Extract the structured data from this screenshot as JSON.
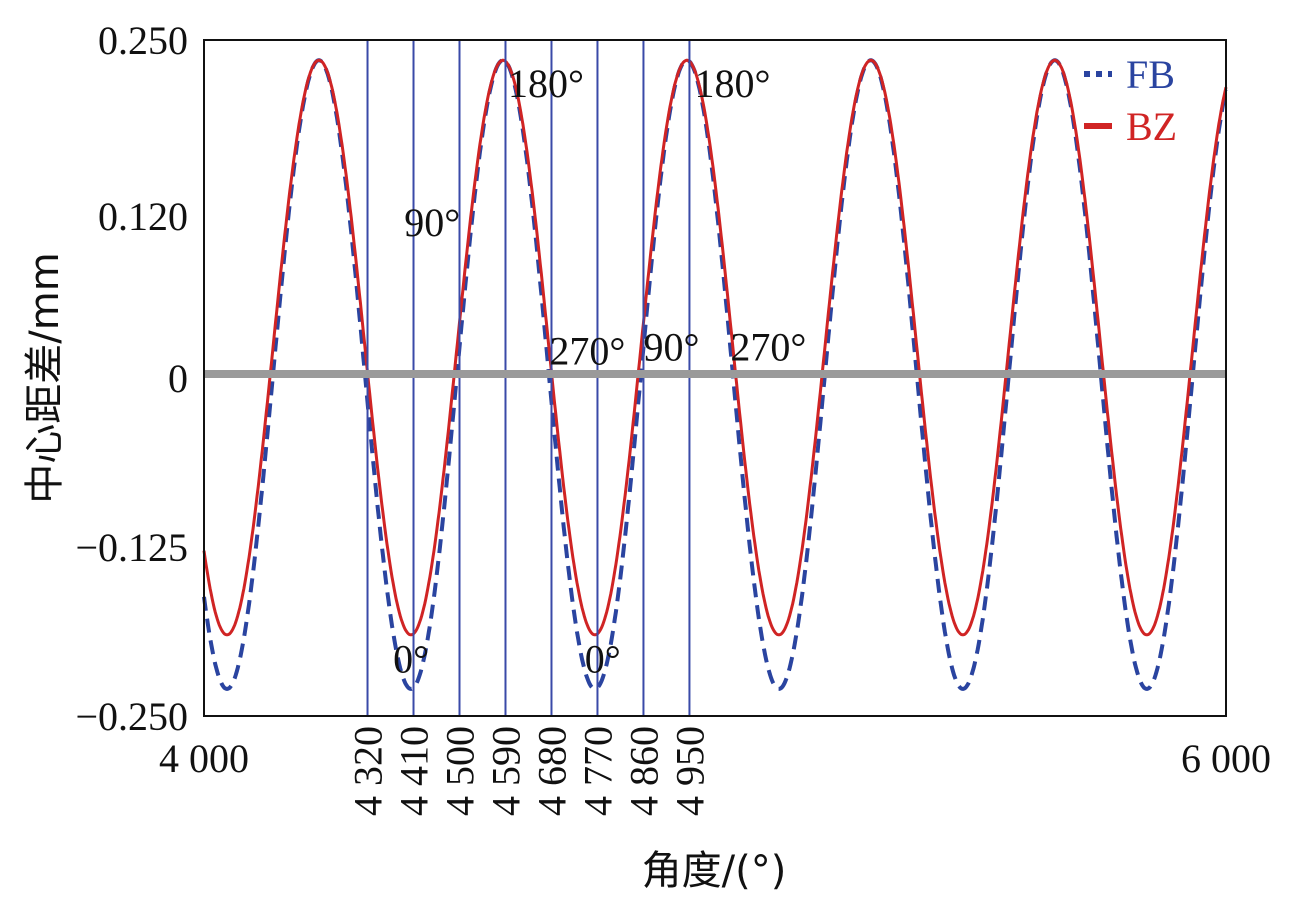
{
  "chart_data": {
    "type": "line",
    "xlabel": "角度/(°)",
    "ylabel": "中心距差/mm",
    "xlim": [
      4000,
      6000
    ],
    "ylim": [
      -0.25,
      0.25
    ],
    "x_tick_labels": [
      "4 000",
      "6 000"
    ],
    "x_tick_values": [
      4000,
      6000
    ],
    "x_rotated_tick_labels": [
      "4 320",
      "4 410",
      "4 500",
      "4 590",
      "4 680",
      "4 770",
      "4 860",
      "4 950"
    ],
    "x_rotated_tick_values": [
      4320,
      4410,
      4500,
      4590,
      4680,
      4770,
      4860,
      4950
    ],
    "y_tick_labels": [
      "0.250",
      "0.120",
      "0",
      "−0.125",
      "−0.250"
    ],
    "y_tick_values": [
      0.25,
      0.12,
      0,
      -0.125,
      -0.25
    ],
    "grid": false,
    "zero_line": 0.003,
    "legend_position": "top-right",
    "series": [
      {
        "name": "FB",
        "style": "dashed",
        "color": "#2a44a0",
        "peak": 0.235,
        "trough": -0.23,
        "period": 360,
        "peak_positions": [
          4225,
          4585,
          4950,
          5310,
          5665
        ],
        "trough_positions": [
          4055,
          4410,
          4770,
          5130,
          5490,
          5850
        ]
      },
      {
        "name": "BZ",
        "style": "solid",
        "color": "#d02424",
        "peak": 0.235,
        "trough": -0.19,
        "period": 360,
        "peak_positions": [
          4225,
          4585,
          4950,
          5310,
          5665
        ],
        "trough_positions": [
          4055,
          4410,
          4770,
          5130,
          5490,
          5850
        ]
      }
    ],
    "vertical_markers": [
      4320,
      4410,
      4500,
      4590,
      4680,
      4770,
      4860,
      4950
    ],
    "annotations": [
      {
        "text": "180°",
        "x": 4595,
        "y": 0.208
      },
      {
        "text": "180°",
        "x": 4960,
        "y": 0.208
      },
      {
        "text": "90°",
        "x": 4392,
        "y": 0.105
      },
      {
        "text": "270°",
        "x": 4676,
        "y": 0.01
      },
      {
        "text": "90°",
        "x": 4860,
        "y": 0.013
      },
      {
        "text": "270°",
        "x": 5030,
        "y": 0.013
      },
      {
        "text": "0°",
        "x": 4370,
        "y": -0.218
      },
      {
        "text": "0°",
        "x": 4745,
        "y": -0.218
      }
    ]
  }
}
